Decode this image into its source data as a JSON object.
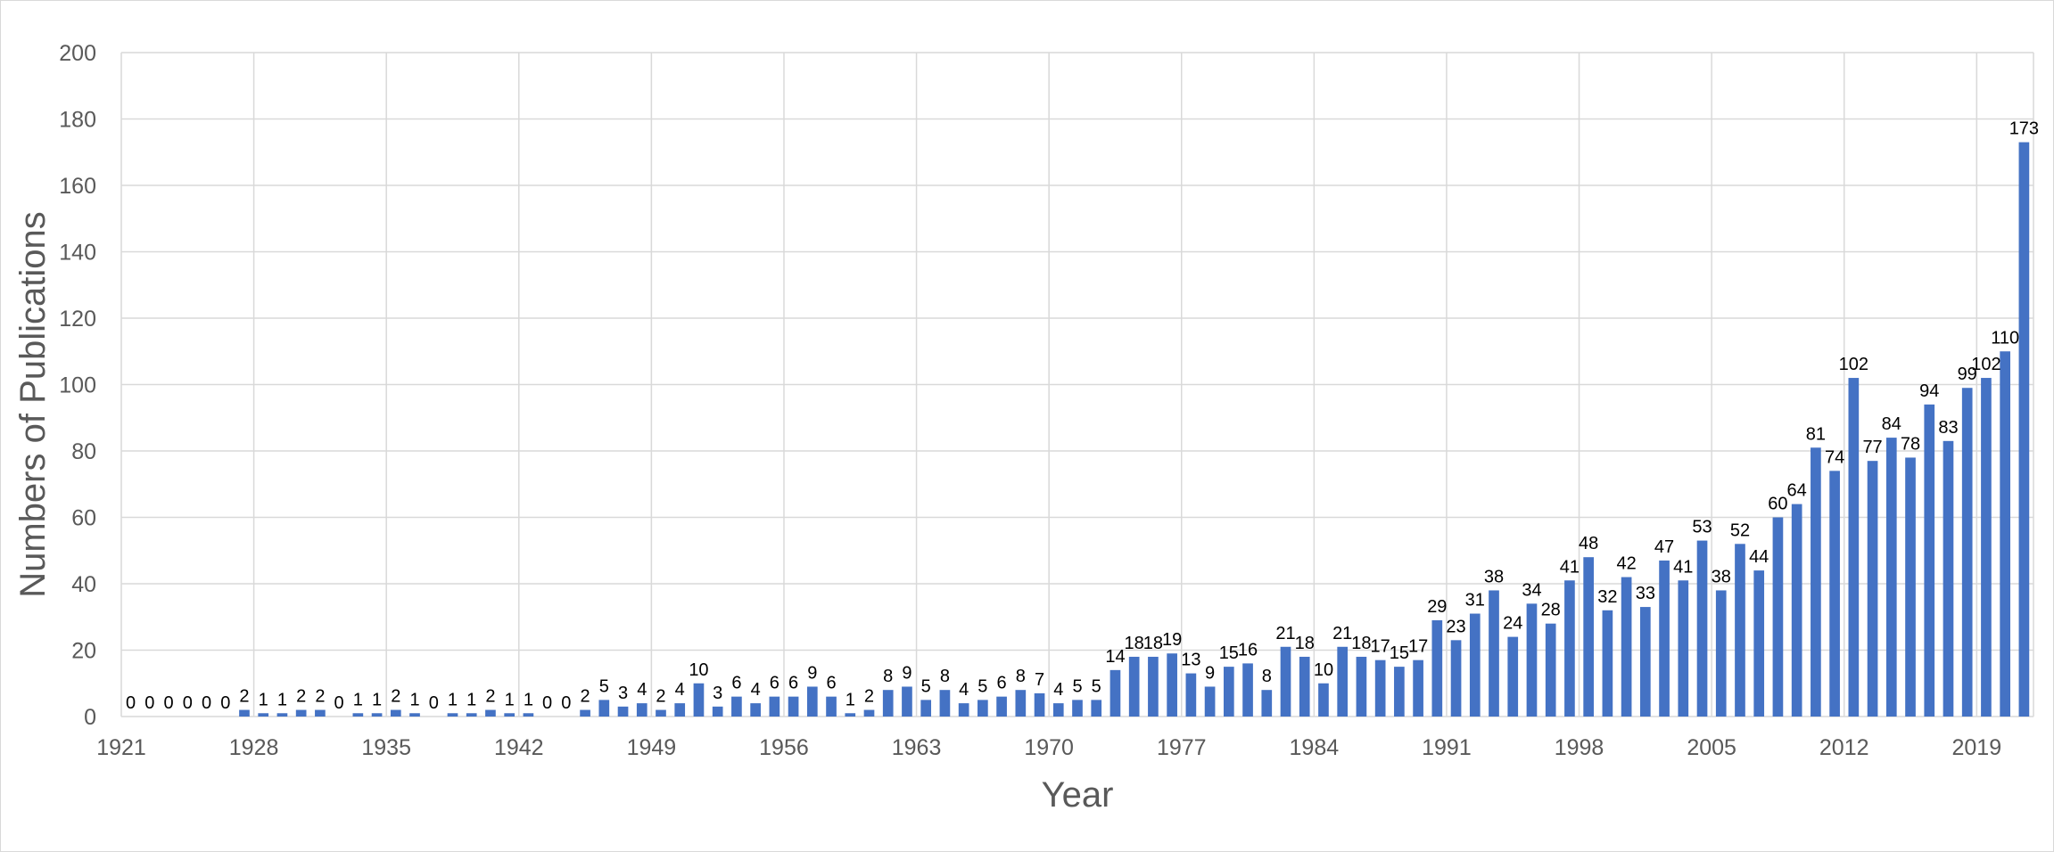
{
  "chart_data": {
    "type": "bar",
    "title": "",
    "xlabel": "Year",
    "ylabel": "Numbers of Publications",
    "ylim": [
      0,
      200
    ],
    "yticks": [
      0,
      20,
      40,
      60,
      80,
      100,
      120,
      140,
      160,
      180,
      200
    ],
    "xtick_labels": [
      "1921",
      "1928",
      "1935",
      "1942",
      "1949",
      "1956",
      "1963",
      "1970",
      "1977",
      "1984",
      "1991",
      "1998",
      "2005",
      "2012",
      "2019"
    ],
    "grid": true,
    "legend": "none",
    "bar_color": "#4472c4",
    "categories": [
      "1921",
      "1922",
      "1923",
      "1924",
      "1925",
      "1926",
      "1927",
      "1928",
      "1929",
      "1930",
      "1931",
      "1932",
      "1933",
      "1934",
      "1935",
      "1936",
      "1937",
      "1938",
      "1939",
      "1940",
      "1941",
      "1942",
      "1943",
      "1944",
      "1945",
      "1946",
      "1947",
      "1948",
      "1949",
      "1950",
      "1951",
      "1952",
      "1953",
      "1954",
      "1955",
      "1956",
      "1957",
      "1958",
      "1959",
      "1960",
      "1961",
      "1962",
      "1963",
      "1964",
      "1965",
      "1966",
      "1967",
      "1968",
      "1969",
      "1970",
      "1971",
      "1972",
      "1973",
      "1974",
      "1975",
      "1976",
      "1977",
      "1978",
      "1979",
      "1980",
      "1981",
      "1982",
      "1983",
      "1984",
      "1985",
      "1986",
      "1987",
      "1988",
      "1989",
      "1990",
      "1991",
      "1992",
      "1993",
      "1994",
      "1995",
      "1996",
      "1997",
      "1998",
      "1999",
      "2000",
      "2001",
      "2002",
      "2003",
      "2004",
      "2005",
      "2006",
      "2007",
      "2008",
      "2009",
      "2010",
      "2011",
      "2012",
      "2013",
      "2014",
      "2015",
      "2016",
      "2017",
      "2018",
      "2019",
      "2020",
      "2021"
    ],
    "values": [
      0,
      0,
      0,
      0,
      0,
      0,
      2,
      1,
      1,
      2,
      2,
      0,
      1,
      1,
      2,
      1,
      0,
      1,
      1,
      2,
      1,
      1,
      0,
      0,
      2,
      5,
      3,
      4,
      2,
      4,
      10,
      3,
      6,
      4,
      6,
      6,
      9,
      6,
      1,
      2,
      8,
      9,
      5,
      8,
      4,
      5,
      6,
      8,
      7,
      4,
      5,
      5,
      14,
      18,
      18,
      19,
      13,
      9,
      15,
      16,
      8,
      21,
      18,
      10,
      21,
      18,
      17,
      15,
      17,
      29,
      23,
      31,
      38,
      24,
      34,
      28,
      41,
      48,
      32,
      42,
      33,
      47,
      41,
      53,
      38,
      52,
      44,
      60,
      64,
      81,
      74,
      102,
      77,
      84,
      78,
      94,
      83,
      99,
      102,
      110,
      173
    ]
  }
}
